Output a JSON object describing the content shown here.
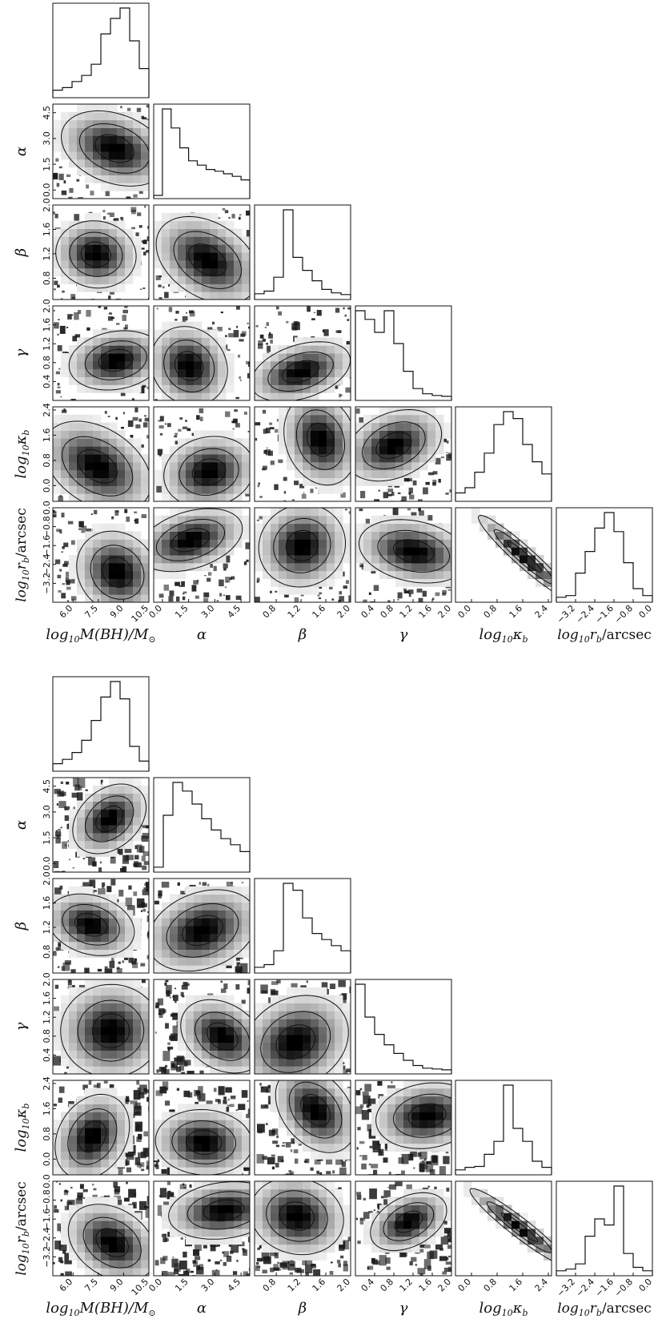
{
  "chart_data": [
    {
      "type": "corner",
      "params": [
        {
          "key": "mbh",
          "label": "log₁₀M(BH)/M⊙",
          "range": [
            4.8,
            10.5
          ],
          "ticks": [
            "6.0",
            "7.5",
            "9.0",
            "10.5"
          ]
        },
        {
          "key": "alpha",
          "label": "α",
          "range": [
            -0.5,
            5.0
          ],
          "ticks": [
            "0.0",
            "1.5",
            "3.0",
            "4.5"
          ]
        },
        {
          "key": "beta",
          "label": "β",
          "range": [
            0.45,
            2.0
          ],
          "ticks": [
            "0.8",
            "1.2",
            "1.6",
            "2.0"
          ]
        },
        {
          "key": "gamma",
          "label": "γ",
          "range": [
            0.0,
            2.0
          ],
          "ticks": [
            "0.4",
            "0.8",
            "1.2",
            "1.6",
            "2.0"
          ]
        },
        {
          "key": "kappa",
          "label": "log₁₀κ_b",
          "range": [
            -0.5,
            2.5
          ],
          "ticks": [
            "0.0",
            "0.8",
            "1.6",
            "2.4"
          ]
        },
        {
          "key": "rb",
          "label": "log₁₀r_b/arcsec",
          "range": [
            -4.0,
            0.0
          ],
          "ticks": [
            "-3.2",
            "-2.4",
            "-1.6",
            "-0.8",
            "0.0"
          ]
        }
      ],
      "marginals": {
        "mbh": [
          0.05,
          0.08,
          0.15,
          0.22,
          0.35,
          0.7,
          0.88,
          1.0,
          0.62,
          0.3
        ],
        "alpha": [
          0.0,
          1.0,
          0.78,
          0.55,
          0.4,
          0.35,
          0.3,
          0.28,
          0.25,
          0.22,
          0.18
        ],
        "beta": [
          0.03,
          0.06,
          0.22,
          1.0,
          0.45,
          0.3,
          0.18,
          0.08,
          0.04,
          0.02
        ],
        "gamma": [
          1.0,
          0.9,
          0.75,
          1.0,
          0.62,
          0.3,
          0.1,
          0.04,
          0.02,
          0.01
        ],
        "kappa": [
          0.06,
          0.12,
          0.3,
          0.52,
          0.85,
          1.0,
          0.92,
          0.62,
          0.42,
          0.28
        ],
        "rb": [
          0.02,
          0.04,
          0.3,
          0.55,
          0.82,
          1.0,
          0.78,
          0.42,
          0.12,
          0.04
        ]
      }
    },
    {
      "type": "corner",
      "params": [
        {
          "key": "mbh",
          "label": "log₁₀M(BH)/M⊙",
          "range": [
            4.8,
            10.5
          ],
          "ticks": [
            "6.0",
            "7.5",
            "9.0",
            "10.5"
          ]
        },
        {
          "key": "alpha",
          "label": "α",
          "range": [
            -0.5,
            5.0
          ],
          "ticks": [
            "0.0",
            "1.5",
            "3.0",
            "4.5"
          ]
        },
        {
          "key": "beta",
          "label": "β",
          "range": [
            0.45,
            2.0
          ],
          "ticks": [
            "0.8",
            "1.2",
            "1.6",
            "2.0"
          ]
        },
        {
          "key": "gamma",
          "label": "γ",
          "range": [
            0.0,
            2.0
          ],
          "ticks": [
            "0.4",
            "0.8",
            "1.2",
            "1.6",
            "2.0"
          ]
        },
        {
          "key": "kappa",
          "label": "log₁₀κ_b",
          "range": [
            -0.5,
            2.5
          ],
          "ticks": [
            "0.0",
            "0.8",
            "1.6",
            "2.4"
          ]
        },
        {
          "key": "rb",
          "label": "log₁₀r_b/arcsec",
          "range": [
            -4.0,
            0.0
          ],
          "ticks": [
            "-3.2",
            "-2.4",
            "-1.6",
            "-0.8",
            "0.0"
          ]
        }
      ],
      "marginals": {
        "mbh": [
          0.05,
          0.1,
          0.18,
          0.32,
          0.55,
          0.82,
          1.0,
          0.8,
          0.25,
          0.08
        ],
        "alpha": [
          0.02,
          0.62,
          1.0,
          0.9,
          0.75,
          0.58,
          0.45,
          0.35,
          0.28,
          0.2
        ],
        "beta": [
          0.03,
          0.06,
          0.22,
          1.0,
          0.92,
          0.6,
          0.42,
          0.35,
          0.28,
          0.22
        ],
        "gamma": [
          1.0,
          0.62,
          0.42,
          0.3,
          0.2,
          0.12,
          0.06,
          0.03,
          0.02,
          0.01
        ],
        "kappa": [
          0.02,
          0.05,
          0.06,
          0.2,
          0.35,
          1.0,
          0.5,
          0.35,
          0.12,
          0.05
        ],
        "rb": [
          0.02,
          0.04,
          0.1,
          0.42,
          0.62,
          0.55,
          1.0,
          0.22,
          0.06,
          0.02
        ]
      }
    }
  ],
  "colors": {
    "ink": "#111111",
    "background": "#ffffff"
  }
}
